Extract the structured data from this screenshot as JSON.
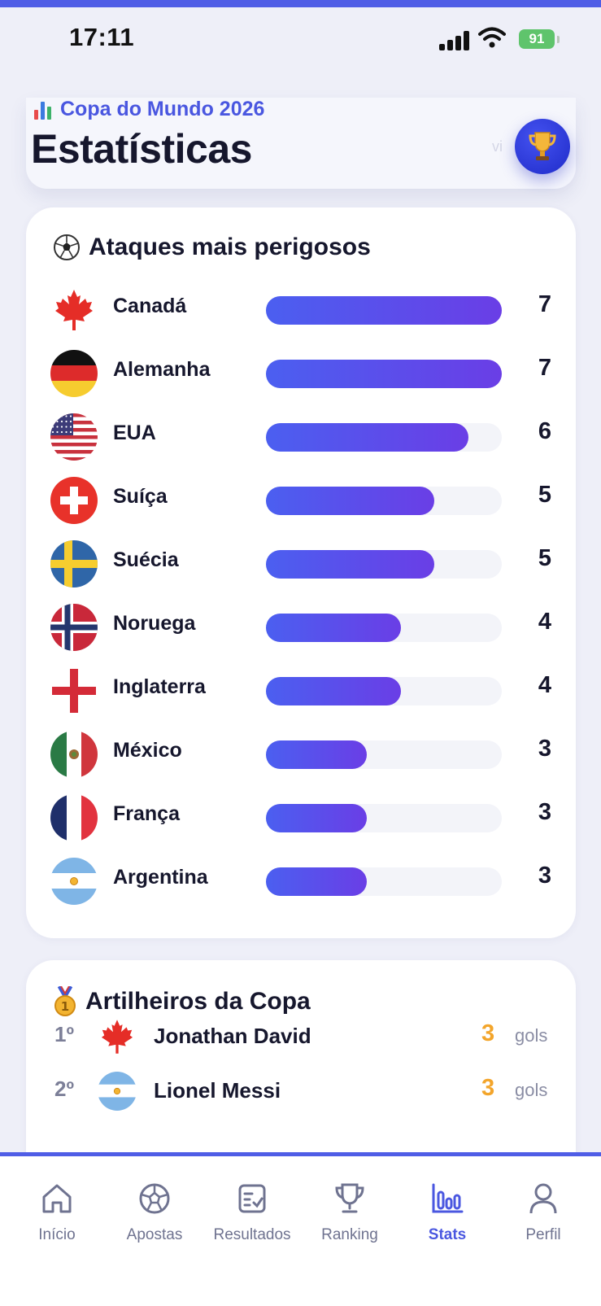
{
  "status": {
    "time": "17:11",
    "battery": "91"
  },
  "header": {
    "subtitle": "Copa do Mundo 2026",
    "title": "Estatísticas"
  },
  "attacks": {
    "title": "Ataques mais perigosos",
    "max_value": 7,
    "rows": [
      {
        "team": "Canadá",
        "goals": 7,
        "flag": "canada"
      },
      {
        "team": "Alemanha",
        "goals": 7,
        "flag": "germany"
      },
      {
        "team": "EUA",
        "goals": 6,
        "flag": "usa"
      },
      {
        "team": "Suíça",
        "goals": 5,
        "flag": "switzerland"
      },
      {
        "team": "Suécia",
        "goals": 5,
        "flag": "sweden"
      },
      {
        "team": "Noruega",
        "goals": 4,
        "flag": "norway"
      },
      {
        "team": "Inglaterra",
        "goals": 4,
        "flag": "england"
      },
      {
        "team": "México",
        "goals": 3,
        "flag": "mexico"
      },
      {
        "team": "França",
        "goals": 3,
        "flag": "france"
      },
      {
        "team": "Argentina",
        "goals": 3,
        "flag": "argentina"
      }
    ]
  },
  "scorers": {
    "title": "Artilheiros da Copa",
    "rows": [
      {
        "rank": "1º",
        "name": "Jonathan David",
        "goals": "3",
        "unit": "gols",
        "flag": "canada"
      },
      {
        "rank": "2º",
        "name": "Lionel Messi",
        "goals": "3",
        "unit": "gols",
        "flag": "argentina"
      }
    ]
  },
  "tabs": [
    {
      "label": "Início",
      "icon": "home-icon"
    },
    {
      "label": "Apostas",
      "icon": "soccer-ball-icon"
    },
    {
      "label": "Resultados",
      "icon": "checklist-icon"
    },
    {
      "label": "Ranking",
      "icon": "trophy-icon"
    },
    {
      "label": "Stats",
      "icon": "bar-chart-icon",
      "active": true
    },
    {
      "label": "Perfil",
      "icon": "user-icon"
    }
  ],
  "colors": {
    "accent": "#4a57e0",
    "bar_start": "#4b5ff0",
    "bar_end": "#6a3ee6",
    "gold": "#f3a52b"
  }
}
